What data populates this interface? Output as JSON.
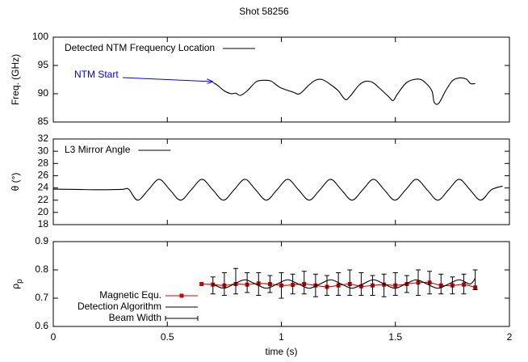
{
  "chart_data": [
    {
      "type": "line",
      "title": "Shot 58256",
      "ylabel": "Freq. (GHz)",
      "annotation": "NTM Start",
      "annotation_color": "#0000ff",
      "xlim": [
        0,
        2
      ],
      "xticks": [
        0,
        0.5,
        1,
        1.5,
        2
      ],
      "ylim": [
        85,
        100
      ],
      "yticks": [
        85,
        90,
        95,
        100
      ],
      "legend": "top-left",
      "series": [
        {
          "name": "Detected NTM Frequency Location",
          "color": "#000000",
          "x": [
            0.7,
            0.72,
            0.75,
            0.78,
            0.8,
            0.82,
            0.85,
            0.88,
            0.9,
            0.95,
            0.98,
            1.0,
            1.05,
            1.08,
            1.12,
            1.15,
            1.18,
            1.22,
            1.25,
            1.28,
            1.3,
            1.34,
            1.37,
            1.4,
            1.43,
            1.47,
            1.49,
            1.51,
            1.55,
            1.6,
            1.63,
            1.66,
            1.67,
            1.69,
            1.72,
            1.75,
            1.78,
            1.81,
            1.83,
            1.85
          ],
          "values": [
            92.0,
            91.5,
            90.5,
            90.0,
            90.1,
            89.7,
            90.5,
            91.8,
            92.3,
            92.3,
            91.5,
            91.0,
            90.3,
            90.0,
            91.5,
            92.4,
            92.5,
            91.5,
            90.5,
            89.0,
            89.5,
            91.5,
            92.2,
            92.0,
            91.0,
            89.5,
            88.8,
            90.0,
            92.0,
            92.6,
            92.0,
            90.5,
            88.5,
            88.3,
            90.5,
            92.3,
            92.8,
            92.6,
            91.8,
            91.8
          ]
        }
      ]
    },
    {
      "type": "line",
      "ylabel": "θ (°)",
      "xlim": [
        0,
        2
      ],
      "xticks": [
        0,
        0.5,
        1,
        1.5,
        2
      ],
      "ylim": [
        18,
        32
      ],
      "yticks": [
        18,
        20,
        22,
        24,
        26,
        28,
        30,
        32
      ],
      "legend": "top-left",
      "series": [
        {
          "name": "L3 Mirror Angle",
          "color": "#000000",
          "x": [
            0,
            0.1,
            0.2,
            0.3,
            0.33,
            0.37,
            0.417,
            0.464,
            0.511,
            0.558,
            0.605,
            0.652,
            0.699,
            0.746,
            0.793,
            0.84,
            0.887,
            0.934,
            0.981,
            1.028,
            1.075,
            1.122,
            1.169,
            1.216,
            1.263,
            1.31,
            1.357,
            1.404,
            1.451,
            1.498,
            1.545,
            1.592,
            1.639,
            1.686,
            1.733,
            1.78,
            1.827,
            1.874,
            1.921,
            1.97
          ],
          "values": [
            23.8,
            23.75,
            23.7,
            23.75,
            23.8,
            22.0,
            23.7,
            25.4,
            23.7,
            22.0,
            23.7,
            25.4,
            23.7,
            22.0,
            23.7,
            25.4,
            23.7,
            22.0,
            23.7,
            25.4,
            23.7,
            22.0,
            23.7,
            25.4,
            23.7,
            22.0,
            23.7,
            25.4,
            23.7,
            22.0,
            23.7,
            25.4,
            23.7,
            22.0,
            23.7,
            25.4,
            23.7,
            22.0,
            23.7,
            24.3
          ]
        }
      ]
    },
    {
      "type": "line",
      "ylabel": "ρ",
      "ylabel_subscript": "p",
      "xlabel": "time (s)",
      "xlim": [
        0,
        2
      ],
      "xticks": [
        0,
        0.5,
        1,
        1.5,
        2
      ],
      "ylim": [
        0.6,
        0.9
      ],
      "yticks": [
        0.6,
        0.7,
        0.8,
        0.9
      ],
      "legend": "bottom-left",
      "series": [
        {
          "name": "Magnetic Equ.",
          "color": "#d40000",
          "marker": "square",
          "x": [
            0.65,
            0.7,
            0.75,
            0.8,
            0.85,
            0.9,
            0.95,
            1.0,
            1.05,
            1.1,
            1.15,
            1.2,
            1.25,
            1.3,
            1.35,
            1.4,
            1.45,
            1.5,
            1.55,
            1.6,
            1.65,
            1.7,
            1.75,
            1.8,
            1.85
          ],
          "values": [
            0.75,
            0.748,
            0.745,
            0.75,
            0.748,
            0.752,
            0.75,
            0.745,
            0.747,
            0.75,
            0.745,
            0.74,
            0.745,
            0.75,
            0.742,
            0.745,
            0.748,
            0.745,
            0.75,
            0.755,
            0.755,
            0.745,
            0.745,
            0.748,
            0.738
          ]
        },
        {
          "name": "Detection Algorithm",
          "color": "#000000",
          "x": [
            0.699,
            0.746,
            0.793,
            0.84,
            0.887,
            0.934,
            0.981,
            1.028,
            1.075,
            1.122,
            1.169,
            1.216,
            1.263,
            1.31,
            1.357,
            1.404,
            1.451,
            1.498,
            1.545,
            1.592,
            1.639,
            1.686,
            1.733,
            1.78,
            1.827,
            1.85
          ],
          "values": [
            0.75,
            0.735,
            0.75,
            0.765,
            0.75,
            0.735,
            0.75,
            0.765,
            0.75,
            0.735,
            0.75,
            0.765,
            0.75,
            0.735,
            0.75,
            0.765,
            0.75,
            0.735,
            0.75,
            0.765,
            0.75,
            0.735,
            0.75,
            0.765,
            0.75,
            0.77
          ]
        },
        {
          "name": "Beam Width",
          "color": "#000000",
          "marker": "errorbar",
          "x": [
            0.7,
            0.75,
            0.8,
            0.85,
            0.9,
            0.95,
            1.0,
            1.05,
            1.1,
            1.15,
            1.2,
            1.25,
            1.3,
            1.35,
            1.4,
            1.45,
            1.5,
            1.55,
            1.6,
            1.65,
            1.7,
            1.75,
            1.8,
            1.85
          ],
          "values": [
            0.745,
            0.75,
            0.76,
            0.755,
            0.75,
            0.75,
            0.745,
            0.75,
            0.755,
            0.745,
            0.745,
            0.75,
            0.755,
            0.75,
            0.745,
            0.745,
            0.75,
            0.75,
            0.755,
            0.755,
            0.75,
            0.745,
            0.75,
            0.765
          ],
          "errors": [
            0.03,
            0.04,
            0.045,
            0.035,
            0.04,
            0.03,
            0.045,
            0.035,
            0.04,
            0.04,
            0.035,
            0.04,
            0.045,
            0.04,
            0.035,
            0.04,
            0.04,
            0.03,
            0.045,
            0.04,
            0.035,
            0.03,
            0.035,
            0.035
          ]
        }
      ]
    }
  ]
}
